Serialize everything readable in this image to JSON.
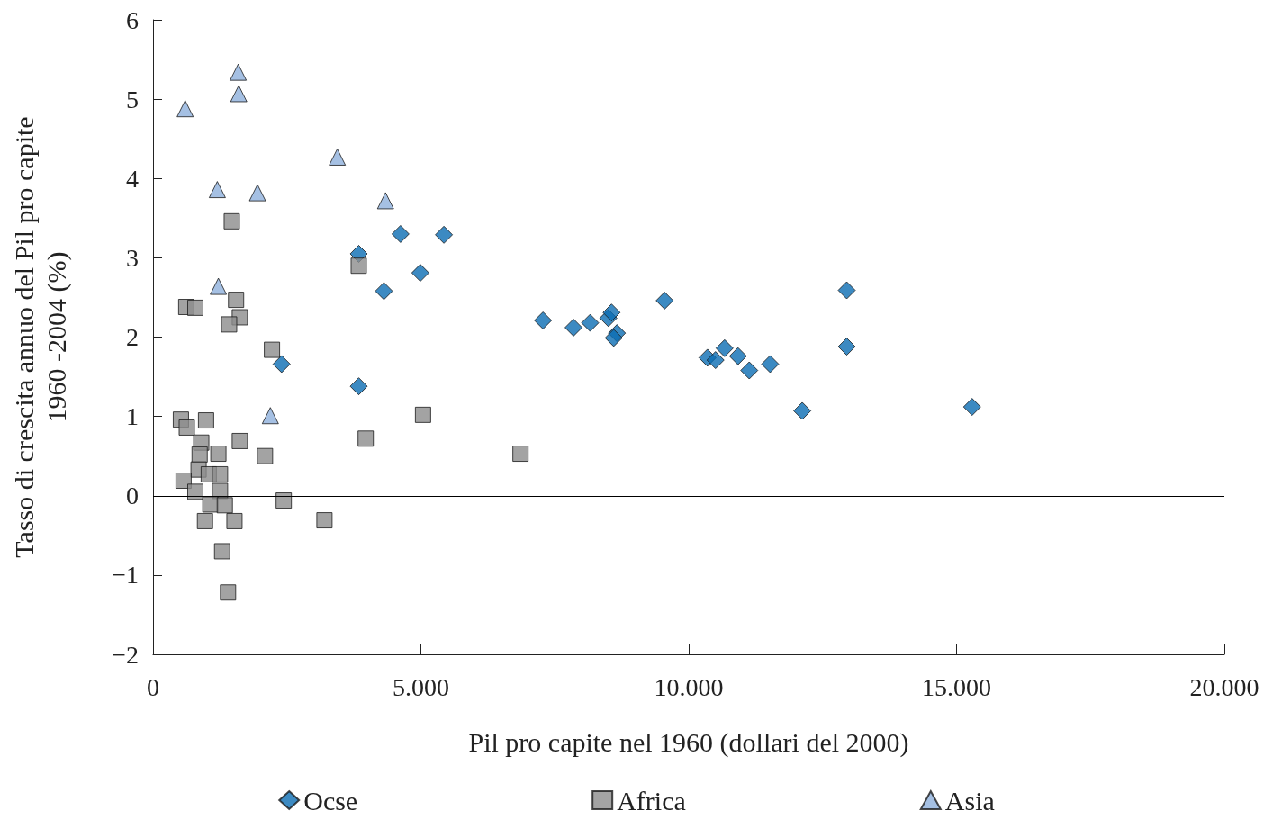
{
  "chart_data": {
    "type": "scatter",
    "xlabel": "Pil pro capite nel 1960 (dollari del 2000)",
    "ylabel": "Tasso di crescita annuo del Pil pro capite\n1960 -2004 (%)",
    "xlim": [
      0,
      20000
    ],
    "xticks": [
      0,
      {
        "value": 5000,
        "label": "5.000"
      },
      {
        "value": 10000,
        "label": "10.000"
      },
      {
        "value": 15000,
        "label": "15.000"
      },
      {
        "value": 20000,
        "label": "20.000"
      }
    ],
    "ylim": [
      -2,
      6
    ],
    "yticks": [
      {
        "value": -2,
        "label": "−2"
      },
      {
        "value": -1,
        "label": "−1"
      },
      0,
      1,
      2,
      3,
      4,
      5,
      6
    ],
    "grid": false,
    "legend": "bottom",
    "ref_lines": [
      {
        "axis": "y",
        "value": 0,
        "color": "#000000"
      }
    ],
    "series": [
      {
        "name": "Ocse",
        "color": "#0b6db3",
        "marker": "diamond",
        "x": [
          2400,
          3840,
          3840,
          4310,
          4620,
          4990,
          5430,
          7280,
          7850,
          8160,
          8500,
          8560,
          8660,
          8600,
          9550,
          10350,
          10500,
          10670,
          10920,
          11130,
          11520,
          12120,
          12950,
          12950,
          15290
        ],
        "values": [
          1.66,
          3.05,
          1.38,
          2.58,
          3.3,
          2.81,
          3.29,
          2.21,
          2.12,
          2.18,
          2.24,
          2.31,
          2.05,
          1.99,
          2.46,
          1.74,
          1.71,
          1.86,
          1.76,
          1.58,
          1.66,
          1.07,
          2.59,
          1.88,
          1.12
        ]
      },
      {
        "name": "Africa",
        "color": "#8c8c8c",
        "marker": "square",
        "x": [
          1470,
          3840,
          620,
          790,
          1550,
          1620,
          1420,
          2220,
          520,
          630,
          990,
          5040,
          1620,
          3970,
          900,
          870,
          1220,
          2090,
          6860,
          850,
          1040,
          1250,
          570,
          790,
          1250,
          2440,
          1070,
          1340,
          970,
          1520,
          3200,
          1290,
          1400
        ],
        "values": [
          3.46,
          2.9,
          2.38,
          2.37,
          2.47,
          2.25,
          2.16,
          1.84,
          0.96,
          0.86,
          0.95,
          1.02,
          0.69,
          0.72,
          0.67,
          0.52,
          0.53,
          0.5,
          0.53,
          0.33,
          0.27,
          0.27,
          0.19,
          0.05,
          0.06,
          -0.06,
          -0.11,
          -0.12,
          -0.32,
          -0.32,
          -0.31,
          -0.7,
          -1.22
        ]
      },
      {
        "name": "Asia",
        "color": "#8fb0dc",
        "marker": "triangle",
        "x": [
          1590,
          1600,
          600,
          3440,
          1200,
          1950,
          4340,
          1220,
          2190
        ],
        "values": [
          5.34,
          5.07,
          4.88,
          4.27,
          3.86,
          3.82,
          3.72,
          2.64,
          1.01
        ]
      }
    ]
  }
}
